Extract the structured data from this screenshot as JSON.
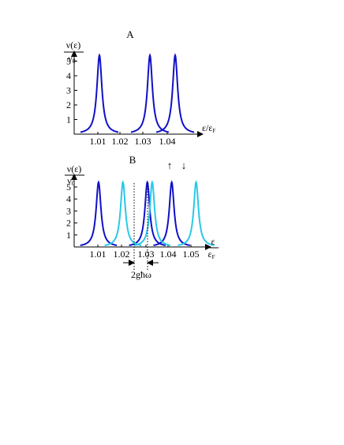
{
  "colors": {
    "dark_blue": "#1010c8",
    "light_blue": "#28c8e8",
    "axis": "#000000"
  },
  "chart_data": [
    {
      "type": "line",
      "panel_label": "A",
      "ylabel_num": "ν(ε)",
      "ylabel_den": "ν",
      "ylabel_den_sub": "0",
      "xlabel_a": "ε/ε",
      "xlabel_a_sub": "F",
      "xlim": [
        1.0,
        1.05
      ],
      "ylim": [
        0,
        5.5
      ],
      "yticks": [
        "1",
        "2",
        "3",
        "4",
        "5"
      ],
      "xticks": [
        "1.01",
        "1.02",
        "1.03",
        "1.04"
      ],
      "series": [
        {
          "color": "#1010c8",
          "peaks_x": [
            1.01,
            1.03,
            1.04
          ],
          "peak_y": 5.4,
          "width": 0.0012
        }
      ]
    },
    {
      "type": "line",
      "panel_label": "B",
      "ylabel_num": "ν(ε)",
      "ylabel_den": "ν",
      "ylabel_den_sub": "0",
      "xlabel_num": "ε",
      "xlabel_den": "ε",
      "xlabel_den_sub": "F",
      "xlim": [
        1.0,
        1.055
      ],
      "ylim": [
        0,
        5.5
      ],
      "yticks": [
        "1",
        "2",
        "3",
        "4",
        "5"
      ],
      "xticks": [
        "1.01",
        "1.02",
        "1.03",
        "1.04",
        "1.05"
      ],
      "spin_up": "↑",
      "spin_down": "↓",
      "gap_label": "2għω",
      "series": [
        {
          "color": "#1010c8",
          "peaks_x": [
            1.01,
            1.03,
            1.04
          ],
          "peak_y": 5.4,
          "width": 0.0012
        },
        {
          "color": "#28c8e8",
          "peaks_x": [
            1.02,
            1.032,
            1.05
          ],
          "peak_y": 5.4,
          "width": 0.0012
        }
      ]
    }
  ]
}
